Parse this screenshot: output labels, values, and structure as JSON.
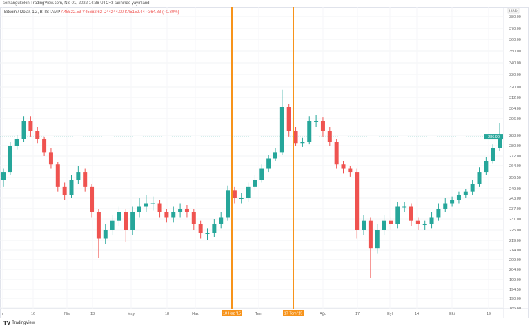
{
  "header": {
    "published": "serkangultekin TradingView.com, Nis 01, 2022 14:36 UTC+3 tarihinde yayınlandı"
  },
  "legend": {
    "symbol": "Bitcoin / Dolar, 1G, BITSTAMP",
    "open": "A45522.53",
    "high": "Y45662.62",
    "low": "D44244.00",
    "close": "K45152.44",
    "change": "−364.83 (−0.80%)"
  },
  "axis": {
    "currency": "USD",
    "current_price": "286.90",
    "up_color": "#26a69a",
    "down_color": "#ef5350",
    "marker_color": "#f7931a",
    "y_ticks": [
      "380.00",
      "370.00",
      "360.00",
      "350.00",
      "340.00",
      "330.00",
      "320.00",
      "312.00",
      "304.00",
      "296.00",
      "288.00",
      "280.00",
      "272.00",
      "264.00",
      "256.50",
      "249.00",
      "243.00",
      "237.00",
      "231.00",
      "225.00",
      "219.00",
      "214.00",
      "209.00",
      "204.00",
      "199.00",
      "194.50",
      "190.00",
      "185.80"
    ],
    "x_ticks": [
      "r",
      "16",
      "Nis",
      "13",
      "May",
      "18",
      "Haz",
      "Tem",
      "Ağu",
      "17",
      "Eyl",
      "14",
      "Eki",
      "19"
    ],
    "markers": [
      "18 Haz '15",
      "17 Tem '15"
    ]
  },
  "chart_data": {
    "type": "candlestick",
    "ohlc": [
      [
        255,
        262,
        250,
        260
      ],
      [
        260,
        283,
        258,
        280
      ],
      [
        280,
        288,
        277,
        285
      ],
      [
        285,
        298,
        283,
        295
      ],
      [
        295,
        298,
        287,
        290
      ],
      [
        290,
        292,
        282,
        285
      ],
      [
        285,
        287,
        272,
        275
      ],
      [
        275,
        278,
        262,
        265
      ],
      [
        265,
        267,
        247,
        250
      ],
      [
        250,
        253,
        242,
        245
      ],
      [
        245,
        258,
        243,
        255
      ],
      [
        255,
        264,
        252,
        260
      ],
      [
        260,
        262,
        247,
        250
      ],
      [
        250,
        252,
        232,
        235
      ],
      [
        235,
        237,
        210,
        220
      ],
      [
        220,
        228,
        217,
        225
      ],
      [
        225,
        233,
        222,
        230
      ],
      [
        230,
        238,
        227,
        235
      ],
      [
        235,
        237,
        218,
        225
      ],
      [
        225,
        238,
        222,
        235
      ],
      [
        235,
        243,
        232,
        238
      ],
      [
        238,
        245,
        235,
        240
      ],
      [
        240,
        244,
        236,
        240
      ],
      [
        240,
        242,
        232,
        235
      ],
      [
        235,
        237,
        229,
        232
      ],
      [
        232,
        238,
        229,
        235
      ],
      [
        235,
        240,
        232,
        237
      ],
      [
        237,
        239,
        232,
        235
      ],
      [
        235,
        237,
        225,
        228
      ],
      [
        228,
        230,
        220,
        223
      ],
      [
        223,
        226,
        219,
        223
      ],
      [
        223,
        231,
        221,
        228
      ],
      [
        228,
        235,
        226,
        232
      ],
      [
        232,
        251,
        230,
        248
      ],
      [
        248,
        250,
        240,
        243
      ],
      [
        243,
        246,
        240,
        243
      ],
      [
        243,
        253,
        241,
        250
      ],
      [
        250,
        258,
        248,
        255
      ],
      [
        255,
        265,
        253,
        262
      ],
      [
        262,
        273,
        260,
        270
      ],
      [
        270,
        278,
        268,
        275
      ],
      [
        275,
        318,
        273,
        305
      ],
      [
        305,
        307,
        287,
        290
      ],
      [
        290,
        292,
        280,
        282
      ],
      [
        282,
        286,
        279,
        283
      ],
      [
        283,
        298,
        281,
        295
      ],
      [
        295,
        299,
        292,
        295
      ],
      [
        295,
        297,
        287,
        290
      ],
      [
        290,
        292,
        280,
        283
      ],
      [
        283,
        285,
        262,
        265
      ],
      [
        265,
        268,
        259,
        262
      ],
      [
        262,
        264,
        257,
        260
      ],
      [
        260,
        262,
        220,
        225
      ],
      [
        225,
        233,
        222,
        230
      ],
      [
        230,
        232,
        200,
        215
      ],
      [
        215,
        228,
        212,
        225
      ],
      [
        225,
        233,
        222,
        230
      ],
      [
        230,
        232,
        225,
        228
      ],
      [
        228,
        241,
        226,
        238
      ],
      [
        238,
        241,
        235,
        238
      ],
      [
        238,
        240,
        227,
        230
      ],
      [
        230,
        232,
        225,
        228
      ],
      [
        228,
        230,
        225,
        228
      ],
      [
        228,
        235,
        226,
        232
      ],
      [
        232,
        240,
        230,
        237
      ],
      [
        237,
        243,
        235,
        240
      ],
      [
        240,
        244,
        238,
        242
      ],
      [
        242,
        247,
        240,
        245
      ],
      [
        245,
        249,
        243,
        247
      ],
      [
        247,
        255,
        245,
        252
      ],
      [
        252,
        263,
        250,
        260
      ],
      [
        260,
        271,
        258,
        268
      ],
      [
        268,
        281,
        266,
        278
      ],
      [
        278,
        294,
        276,
        287
      ]
    ]
  },
  "footer": {
    "brand": "TradingView"
  }
}
